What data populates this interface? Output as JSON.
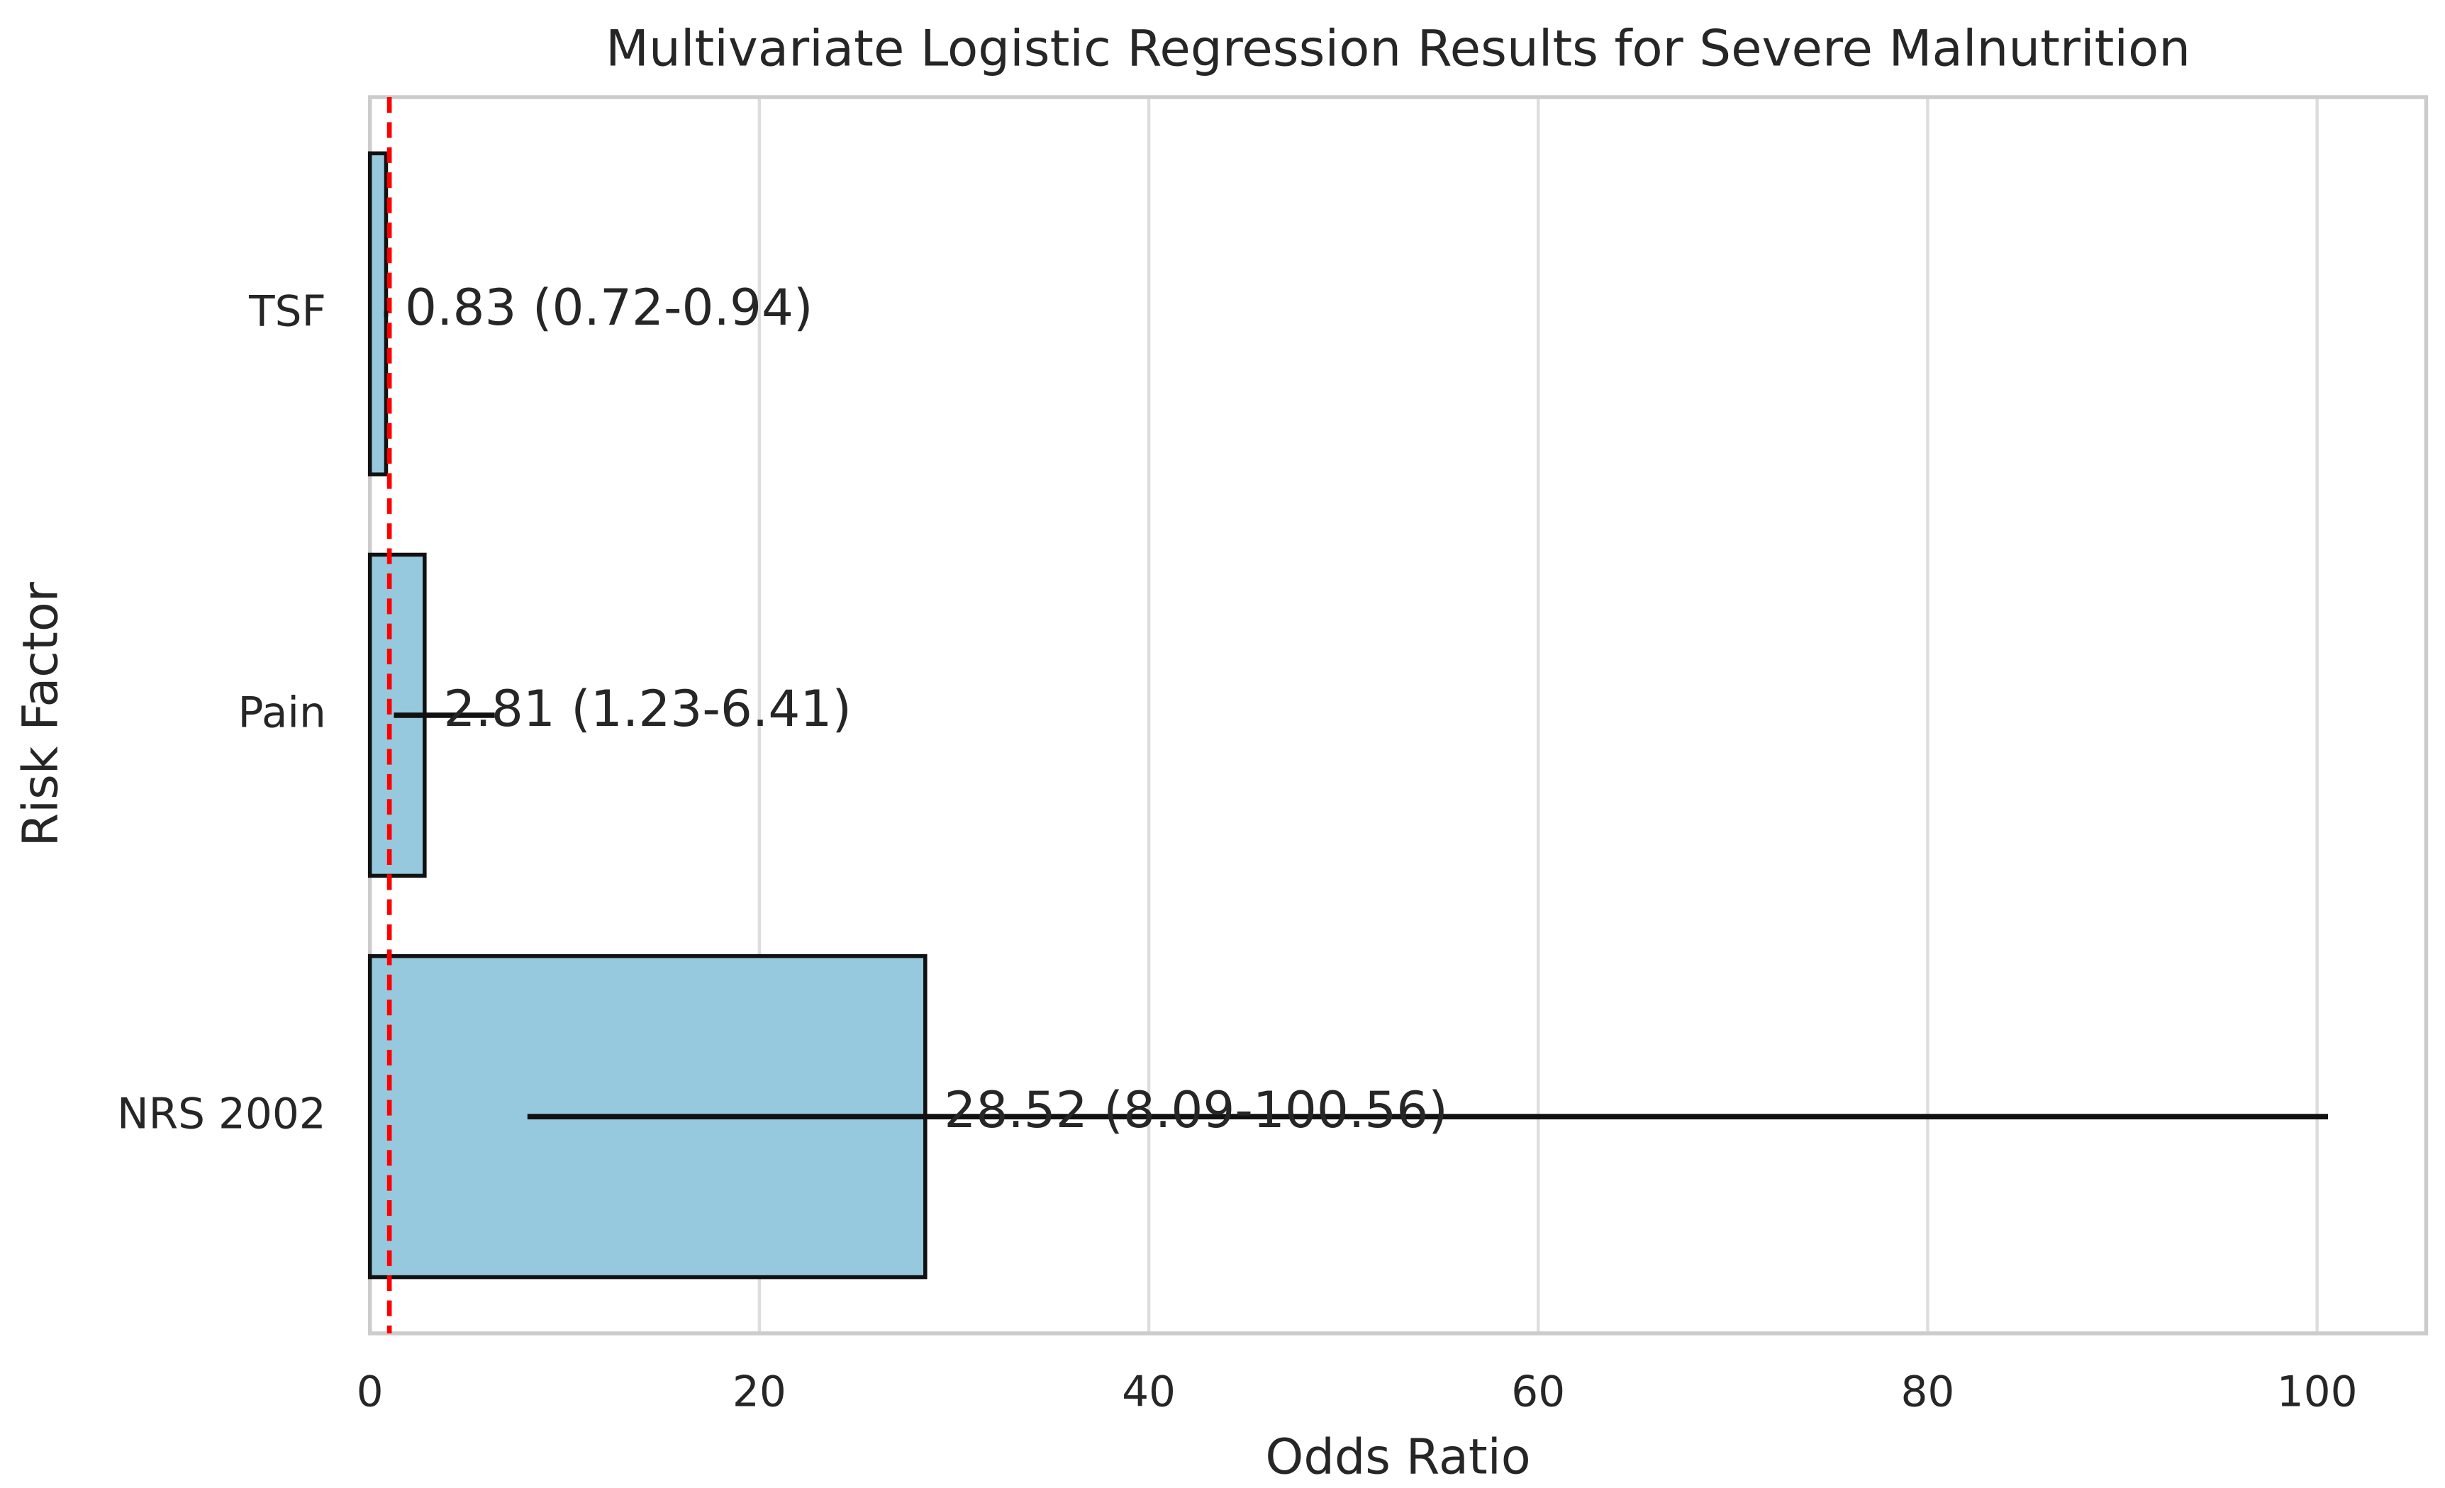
{
  "chart_data": {
    "type": "bar",
    "orientation": "horizontal",
    "title": "Multivariate Logistic Regression Results for Severe Malnutrition",
    "xlabel": "Odds Ratio",
    "ylabel": "Risk Factor",
    "categories": [
      "TSF",
      "Pain",
      "NRS 2002"
    ],
    "values": [
      0.83,
      2.81,
      28.52
    ],
    "value_labels": [
      "0.83 (0.72-0.94)",
      "2.81 (1.23-6.41)",
      "28.52 (8.09-100.56)"
    ],
    "ci_lower": [
      0.72,
      1.23,
      8.09
    ],
    "ci_upper": [
      0.94,
      6.41,
      100.56
    ],
    "color": "#96c9de",
    "reference_line": 1,
    "reference_color": "#ff0000",
    "xlim": [
      0,
      105.6
    ],
    "xticks": [
      0,
      20,
      40,
      60,
      80,
      100
    ],
    "grid": true
  }
}
